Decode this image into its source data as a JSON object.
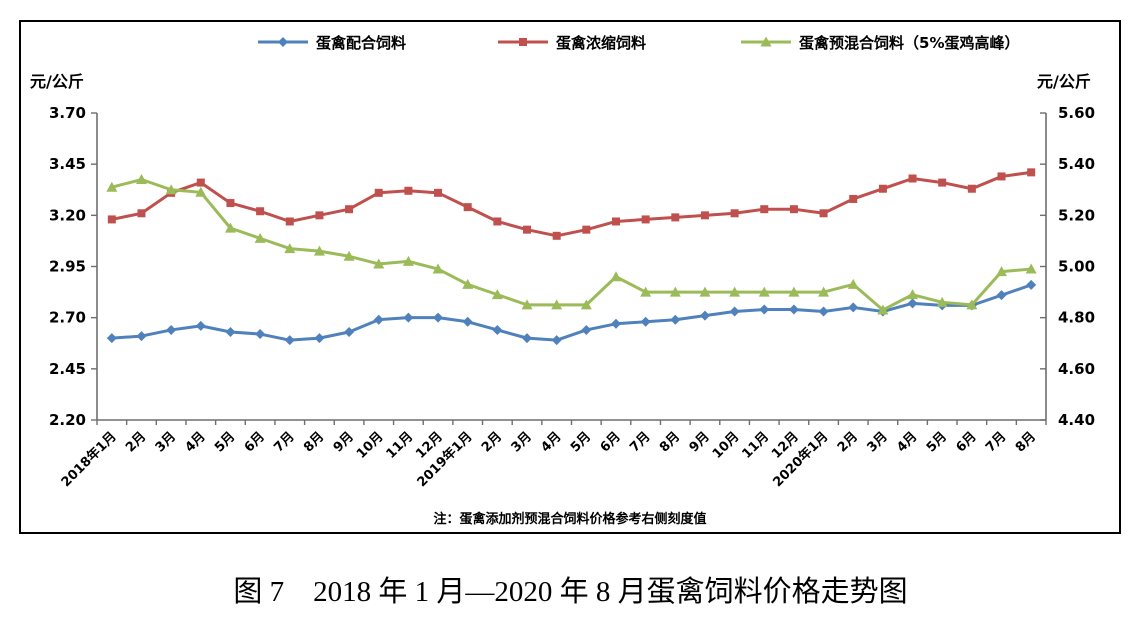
{
  "figure": {
    "unit_left": "元/公斤",
    "unit_right": "元/公斤",
    "note": "注：蛋禽添加剂预混合饲料价格参考右侧刻度值",
    "caption": "图 7　2018 年 1 月—2020 年 8 月蛋禽饲料价格走势图"
  },
  "legend": [
    {
      "label": "蛋禽配合饲料",
      "color": "#4F81BD",
      "marker": "diamond"
    },
    {
      "label": "蛋禽浓缩饲料",
      "color": "#C0504D",
      "marker": "square"
    },
    {
      "label": "蛋禽预混合饲料（5%蛋鸡高峰）",
      "color": "#9BBB59",
      "marker": "triangle"
    }
  ],
  "chart_data": {
    "type": "line",
    "title": "图 7　2018 年 1 月—2020 年 8 月蛋禽饲料价格走势图",
    "note": "注：蛋禽添加剂预混合饲料价格参考右侧刻度值",
    "grid": false,
    "legend_position": "top",
    "categories": [
      "2018年1月",
      "2月",
      "3月",
      "4月",
      "5月",
      "6月",
      "7月",
      "8月",
      "9月",
      "10月",
      "11月",
      "12月",
      "2019年1月",
      "2月",
      "3月",
      "4月",
      "5月",
      "6月",
      "7月",
      "8月",
      "9月",
      "10月",
      "11月",
      "12月",
      "2020年1月",
      "2月",
      "3月",
      "4月",
      "5月",
      "6月",
      "7月",
      "8月"
    ],
    "left_axis": {
      "label": "元/公斤",
      "min": 2.2,
      "max": 3.7,
      "step": 0.25,
      "ticks": [
        "3.70",
        "3.45",
        "3.20",
        "2.95",
        "2.70",
        "2.45",
        "2.20"
      ]
    },
    "right_axis": {
      "label": "元/公斤",
      "min": 4.4,
      "max": 5.6,
      "step": 0.2,
      "ticks": [
        "5.60",
        "5.40",
        "5.20",
        "5.00",
        "4.80",
        "4.60",
        "4.40"
      ]
    },
    "series": [
      {
        "name": "蛋禽配合饲料",
        "axis": "left",
        "color": "#4F81BD",
        "marker": "diamond",
        "values": [
          2.6,
          2.61,
          2.64,
          2.66,
          2.63,
          2.62,
          2.59,
          2.6,
          2.63,
          2.69,
          2.7,
          2.7,
          2.68,
          2.64,
          2.6,
          2.59,
          2.64,
          2.67,
          2.68,
          2.69,
          2.71,
          2.73,
          2.74,
          2.74,
          2.73,
          2.75,
          2.73,
          2.77,
          2.76,
          2.76,
          2.81,
          2.86
        ]
      },
      {
        "name": "蛋禽浓缩饲料",
        "axis": "left",
        "color": "#C0504D",
        "marker": "square",
        "values": [
          3.18,
          3.21,
          3.31,
          3.36,
          3.26,
          3.22,
          3.17,
          3.2,
          3.23,
          3.31,
          3.32,
          3.31,
          3.24,
          3.17,
          3.13,
          3.1,
          3.13,
          3.17,
          3.18,
          3.19,
          3.2,
          3.21,
          3.23,
          3.23,
          3.21,
          3.28,
          3.33,
          3.38,
          3.36,
          3.33,
          3.39,
          3.41
        ]
      },
      {
        "name": "蛋禽预混合饲料（5%蛋鸡高峰）",
        "axis": "right",
        "color": "#9BBB59",
        "marker": "triangle",
        "values": [
          5.31,
          5.34,
          5.3,
          5.29,
          5.15,
          5.11,
          5.07,
          5.06,
          5.04,
          5.01,
          5.02,
          4.99,
          4.93,
          4.89,
          4.85,
          4.85,
          4.85,
          4.96,
          4.9,
          4.9,
          4.9,
          4.9,
          4.9,
          4.9,
          4.9,
          4.93,
          4.83,
          4.89,
          4.86,
          4.85,
          4.98,
          4.99
        ]
      }
    ]
  }
}
